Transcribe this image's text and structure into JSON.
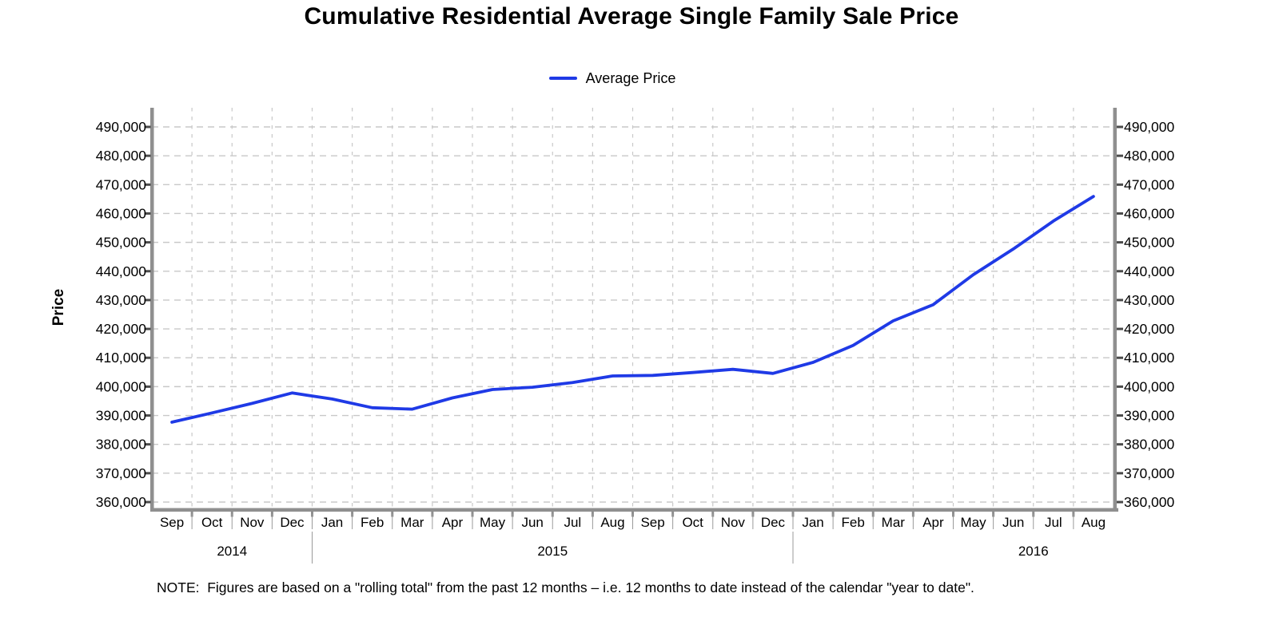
{
  "colors": {
    "line": "#1f3ae6",
    "grid": "#c8c8c8",
    "axis_bar": "#8f8f8f",
    "tick_dark": "#4a4a4a",
    "separator": "#9a9a9a",
    "text": "#000000"
  },
  "chart_data": {
    "type": "line",
    "title": "Cumulative Residential Average Single Family Sale Price",
    "ylabel": "Price",
    "xlabel": "",
    "grid": true,
    "legend_position": "top-center",
    "legend": [
      {
        "name": "Average Price",
        "color": "#1f3ae6"
      }
    ],
    "ylim": [
      360000,
      490000
    ],
    "ytick_step": 10000,
    "ytick_labels_both_sides": true,
    "x": [
      "Sep 2014",
      "Oct 2014",
      "Nov 2014",
      "Dec 2014",
      "Jan 2015",
      "Feb 2015",
      "Mar 2015",
      "Apr 2015",
      "May 2015",
      "Jun 2015",
      "Jul 2015",
      "Aug 2015",
      "Sep 2015",
      "Oct 2015",
      "Nov 2015",
      "Dec 2015",
      "Jan 2016",
      "Feb 2016",
      "Mar 2016",
      "Apr 2016",
      "May 2016",
      "Jun 2016",
      "Jul 2016",
      "Aug 2016"
    ],
    "month_labels": [
      "Sep",
      "Oct",
      "Nov",
      "Dec",
      "Jan",
      "Feb",
      "Mar",
      "Apr",
      "May",
      "Jun",
      "Jul",
      "Aug",
      "Sep",
      "Oct",
      "Nov",
      "Dec",
      "Jan",
      "Feb",
      "Mar",
      "Apr",
      "May",
      "Jun",
      "Jul",
      "Aug"
    ],
    "year_groups": [
      {
        "label": "2014",
        "start_index": 0,
        "month_count": 4,
        "label_boundary_offset": 2
      },
      {
        "label": "2015",
        "start_index": 4,
        "month_count": 12,
        "label_boundary_offset": 10
      },
      {
        "label": "2016",
        "start_index": 16,
        "month_count": 8,
        "label_boundary_offset": 22
      }
    ],
    "series": [
      {
        "name": "Average Price",
        "values": [
          387700,
          390900,
          394200,
          397800,
          395700,
          392700,
          392200,
          396100,
          399000,
          399800,
          401400,
          403700,
          403900,
          404900,
          406000,
          404600,
          408400,
          414300,
          422800,
          428400,
          438800,
          447700,
          457400,
          465900
        ]
      }
    ],
    "note": "NOTE:  Figures are based on a \"rolling total\" from the past 12 months – i.e. 12 months to date instead of the calendar \"year to date\"."
  }
}
